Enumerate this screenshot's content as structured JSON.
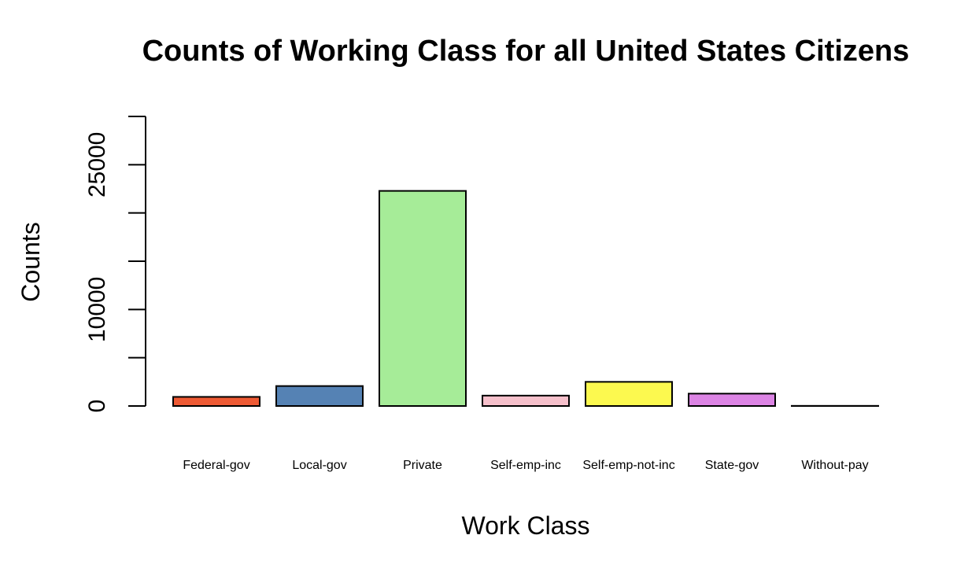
{
  "chart_data": {
    "type": "bar",
    "title": "Counts of Working Class for all United States Citizens",
    "xlabel": "Work Class",
    "ylabel": "Counts",
    "categories": [
      "Federal-gov",
      "Local-gov",
      "Private",
      "Self-emp-inc",
      "Self-emp-not-inc",
      "State-gov",
      "Without-pay"
    ],
    "values": [
      943,
      2067,
      22286,
      1074,
      2499,
      1279,
      14
    ],
    "colors": [
      "#EE5A34",
      "#5582B4",
      "#A6EC98",
      "#F6C0CB",
      "#FCF94F",
      "#DC84E4",
      "#000000"
    ],
    "ylim": [
      0,
      30000
    ],
    "yticks": [
      0,
      5000,
      10000,
      15000,
      20000,
      25000,
      30000
    ],
    "ytick_labels": [
      "0",
      "",
      "10000",
      "",
      "",
      "25000",
      ""
    ],
    "grid": false,
    "legend": "none"
  }
}
